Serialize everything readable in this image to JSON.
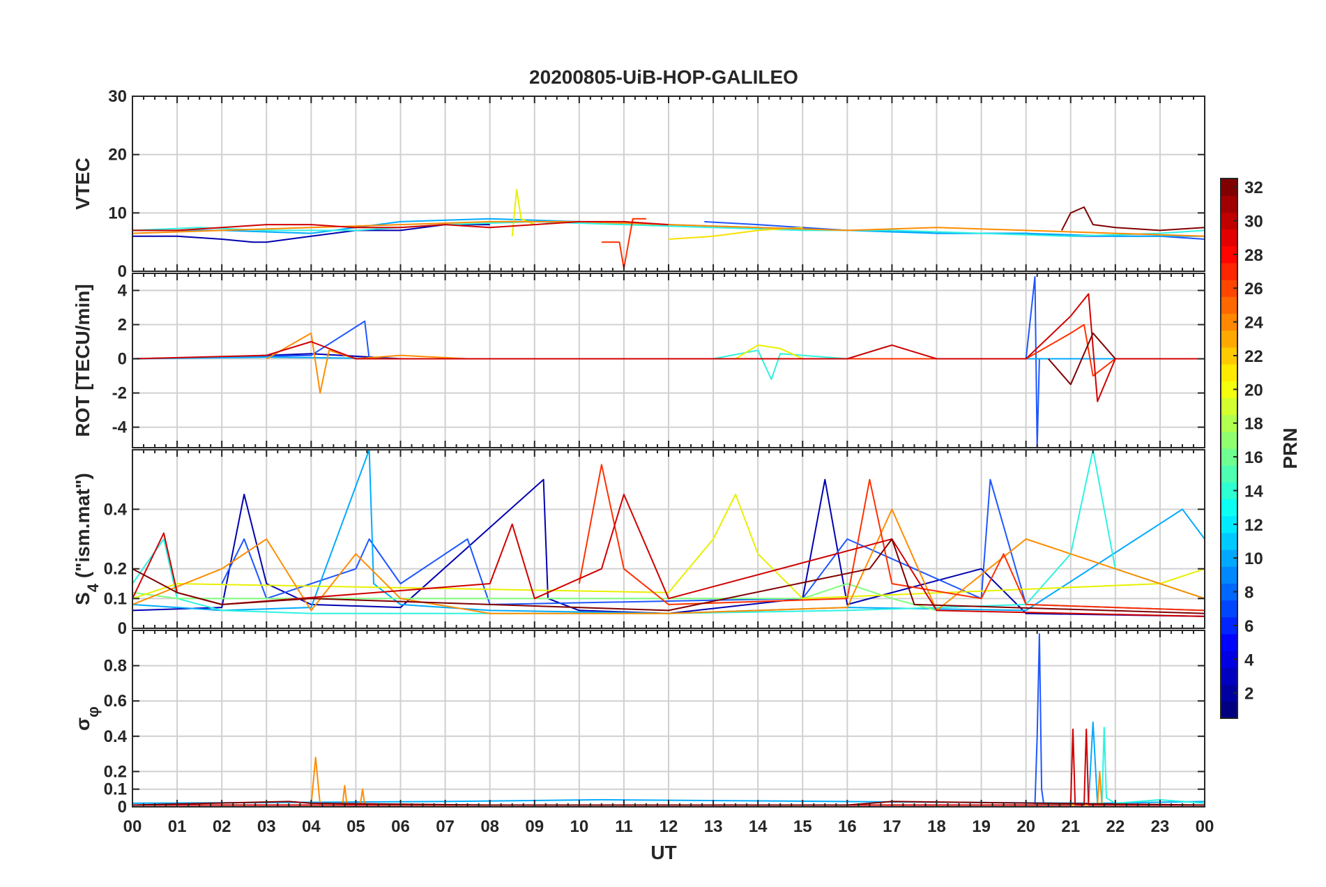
{
  "chart_data": [
    {
      "type": "line",
      "title": "20200805-UiB-HOP-GALILEO",
      "ylabel": "VTEC",
      "ylim": [
        0,
        30
      ],
      "yticks": [
        0,
        10,
        20,
        30
      ],
      "xlabel": "",
      "xlim": [
        0,
        24
      ],
      "grid": true,
      "series": [
        {
          "color": "#0000b0",
          "x": [
            0,
            1,
            2,
            2.7,
            3,
            4,
            5,
            6,
            7,
            8
          ],
          "y": [
            6,
            6,
            5.5,
            5,
            5,
            6,
            7,
            7,
            8,
            8
          ]
        },
        {
          "color": "#1e56ff",
          "x": [
            12.8,
            14,
            15,
            16,
            17,
            18,
            19,
            20,
            21,
            22,
            23,
            24
          ],
          "y": [
            8.5,
            8,
            7.5,
            7,
            7,
            6.5,
            6.5,
            6.5,
            6,
            6,
            6,
            5.5
          ]
        },
        {
          "color": "#00aaff",
          "x": [
            0,
            2,
            4,
            6,
            8,
            10,
            12,
            14,
            16,
            18,
            20,
            22,
            24
          ],
          "y": [
            7,
            7,
            6.5,
            8.5,
            9,
            8.5,
            8,
            7.5,
            7,
            6.5,
            6.5,
            6,
            6
          ]
        },
        {
          "color": "#2ef2e0",
          "x": [
            0,
            1.5,
            3,
            5,
            7,
            9,
            11,
            13,
            15,
            17,
            19,
            21,
            23,
            24
          ],
          "y": [
            7,
            7.5,
            7,
            7,
            8,
            8.5,
            8,
            7.5,
            7,
            7,
            6.5,
            6,
            6.5,
            7
          ]
        },
        {
          "color": "#e8f000",
          "x": [
            8.5,
            8.6,
            8.7,
            9
          ],
          "y": [
            6,
            14,
            9,
            8
          ]
        },
        {
          "color": "#f8e000",
          "x": [
            12,
            13,
            14,
            15
          ],
          "y": [
            5.5,
            6,
            7,
            7.5
          ]
        },
        {
          "color": "#ff8c00",
          "x": [
            0,
            2,
            4,
            6,
            8,
            10,
            12,
            14,
            16,
            18,
            20,
            22,
            24
          ],
          "y": [
            6.5,
            7,
            7.5,
            8,
            8.5,
            8.5,
            8,
            7.5,
            7,
            7.5,
            7,
            6.5,
            6
          ]
        },
        {
          "color": "#ff3000",
          "x": [
            10.5,
            10.9,
            11,
            11.2,
            11.5
          ],
          "y": [
            5,
            5,
            0.5,
            9,
            9
          ]
        },
        {
          "color": "#d00000",
          "x": [
            0,
            1,
            2,
            3,
            4,
            5,
            6,
            7,
            8,
            9,
            10,
            11,
            12
          ],
          "y": [
            7,
            7,
            7.5,
            8,
            8,
            7.5,
            7.5,
            8,
            7.5,
            8,
            8.5,
            8.5,
            8
          ]
        },
        {
          "color": "#800000",
          "x": [
            20.8,
            21,
            21.3,
            21.5,
            22,
            23,
            24
          ],
          "y": [
            7,
            10,
            11,
            8,
            7.5,
            7,
            7.5
          ]
        }
      ]
    },
    {
      "type": "line",
      "ylabel": "ROT [TECU/min]",
      "ylim": [
        -5.2,
        5
      ],
      "yticks": [
        -4,
        -2,
        0,
        2,
        4
      ],
      "xlabel": "",
      "xlim": [
        0,
        24
      ],
      "grid": true,
      "series": [
        {
          "color": "#0000b0",
          "x": [
            0,
            2,
            4,
            6,
            8,
            10,
            12,
            14,
            16,
            18,
            20,
            22,
            24
          ],
          "y": [
            0,
            0.1,
            0.3,
            0,
            0,
            0,
            0,
            0,
            0,
            0,
            0,
            0,
            0
          ]
        },
        {
          "color": "#1e56ff",
          "x": [
            0,
            4,
            5.2,
            5.3,
            8,
            20,
            20.2,
            20.25,
            20.3,
            20.4,
            24
          ],
          "y": [
            0,
            0.2,
            2.2,
            0,
            0,
            0,
            4.8,
            -5.2,
            0,
            0,
            0
          ]
        },
        {
          "color": "#00aaff",
          "x": [
            0,
            3,
            6,
            9,
            12,
            15,
            18,
            21,
            24
          ],
          "y": [
            0,
            0.1,
            0,
            0,
            0,
            0,
            0,
            0,
            0
          ]
        },
        {
          "color": "#2ef2e0",
          "x": [
            13,
            14,
            14.3,
            14.5,
            16,
            17
          ],
          "y": [
            0,
            0.5,
            -1.2,
            0.3,
            0,
            0.8
          ]
        },
        {
          "color": "#e8f000",
          "x": [
            13.5,
            14,
            14.5,
            15
          ],
          "y": [
            0,
            0.8,
            0.6,
            0
          ]
        },
        {
          "color": "#ff8c00",
          "x": [
            3,
            4,
            4.2,
            4.4,
            5,
            6,
            7.5
          ],
          "y": [
            0,
            1.5,
            -2,
            0.5,
            0,
            0.2,
            0
          ]
        },
        {
          "color": "#ff3000",
          "x": [
            10,
            16,
            20,
            21,
            21.3,
            21.5,
            22,
            24
          ],
          "y": [
            0,
            0,
            0,
            1.5,
            2,
            -1,
            0,
            0
          ]
        },
        {
          "color": "#d00000",
          "x": [
            0,
            3,
            4,
            5,
            8,
            12,
            16,
            17,
            18,
            20,
            21,
            21.4,
            21.6,
            22,
            24
          ],
          "y": [
            0,
            0.2,
            1,
            0,
            0,
            0,
            0,
            0.8,
            0,
            0,
            2.5,
            3.8,
            -2.5,
            0,
            0
          ]
        },
        {
          "color": "#800000",
          "x": [
            20.5,
            21,
            21.5,
            22
          ],
          "y": [
            0,
            -1.5,
            1.5,
            0
          ]
        }
      ]
    },
    {
      "type": "line",
      "ylabel": "S4 (\"ism.mat\")",
      "ylabel_main": "S",
      "ylabel_sub": "4",
      "ylabel_rest": " (\"ism.mat\")",
      "ylim": [
        0,
        0.6
      ],
      "yticks": [
        0,
        0.1,
        0.2,
        0.4
      ],
      "xlabel": "",
      "xlim": [
        0,
        24
      ],
      "grid": true,
      "series": [
        {
          "color": "#0000b0",
          "x": [
            0,
            2,
            2.5,
            3,
            4,
            6,
            9.2,
            9.3,
            10,
            12,
            15,
            15.5,
            16,
            19,
            20,
            24
          ],
          "y": [
            0.06,
            0.07,
            0.45,
            0.15,
            0.08,
            0.07,
            0.5,
            0.1,
            0.06,
            0.05,
            0.1,
            0.5,
            0.08,
            0.2,
            0.05,
            0.04
          ]
        },
        {
          "color": "#1e56ff",
          "x": [
            2,
            2.5,
            3,
            5,
            5.3,
            6,
            7.5,
            8,
            15,
            16,
            19,
            19.2,
            20,
            24
          ],
          "y": [
            0.15,
            0.3,
            0.1,
            0.2,
            0.3,
            0.15,
            0.3,
            0.08,
            0.1,
            0.3,
            0.1,
            0.5,
            0.08,
            0.06
          ]
        },
        {
          "color": "#00aaff",
          "x": [
            0,
            2,
            4,
            5.3,
            5.4,
            6,
            8,
            12,
            16,
            20,
            23.5,
            24
          ],
          "y": [
            0.08,
            0.06,
            0.07,
            0.6,
            0.15,
            0.08,
            0.06,
            0.05,
            0.07,
            0.06,
            0.4,
            0.3
          ]
        },
        {
          "color": "#2ef2e0",
          "x": [
            0,
            0.7,
            1,
            2,
            4,
            8,
            12,
            16,
            20,
            21,
            21.5,
            22,
            23,
            24
          ],
          "y": [
            0.15,
            0.3,
            0.1,
            0.06,
            0.05,
            0.05,
            0.05,
            0.06,
            0.08,
            0.25,
            0.6,
            0.2,
            0.15,
            0.1
          ]
        },
        {
          "color": "#7fff7f",
          "x": [
            0,
            1,
            15,
            16,
            17,
            18
          ],
          "y": [
            0.12,
            0.1,
            0.1,
            0.15,
            0.1,
            0.06
          ]
        },
        {
          "color": "#e8f000",
          "x": [
            0,
            1,
            12,
            13,
            13.5,
            14,
            15,
            23,
            24
          ],
          "y": [
            0.1,
            0.15,
            0.12,
            0.3,
            0.45,
            0.25,
            0.1,
            0.15,
            0.2
          ]
        },
        {
          "color": "#ff8c00",
          "x": [
            0,
            2,
            3,
            4,
            5,
            6,
            8,
            12,
            16,
            17,
            18,
            20,
            24
          ],
          "y": [
            0.08,
            0.2,
            0.3,
            0.06,
            0.25,
            0.1,
            0.05,
            0.05,
            0.07,
            0.4,
            0.06,
            0.3,
            0.1
          ]
        },
        {
          "color": "#ff3000",
          "x": [
            10,
            10.5,
            11,
            12,
            16,
            16.5,
            17,
            19,
            19.5,
            20,
            24
          ],
          "y": [
            0.15,
            0.55,
            0.2,
            0.08,
            0.1,
            0.5,
            0.15,
            0.1,
            0.25,
            0.08,
            0.06
          ]
        },
        {
          "color": "#d00000",
          "x": [
            0,
            0.7,
            1,
            2,
            8,
            8.5,
            9,
            10.5,
            11,
            12,
            17,
            18,
            24
          ],
          "y": [
            0.1,
            0.32,
            0.12,
            0.08,
            0.15,
            0.35,
            0.1,
            0.2,
            0.45,
            0.1,
            0.3,
            0.06,
            0.04
          ]
        },
        {
          "color": "#800000",
          "x": [
            0,
            1,
            2,
            4,
            8,
            12,
            16.5,
            17,
            17.5,
            24
          ],
          "y": [
            0.2,
            0.12,
            0.08,
            0.1,
            0.08,
            0.06,
            0.2,
            0.3,
            0.08,
            0.05
          ]
        }
      ]
    },
    {
      "type": "line",
      "ylabel": "σφ",
      "ylabel_main": "σ",
      "ylabel_sub": "φ",
      "ylim": [
        0,
        1
      ],
      "yticks": [
        0,
        0.1,
        0.2,
        0.4,
        0.6,
        0.8
      ],
      "xlabel": "UT",
      "xlim": [
        0,
        24
      ],
      "grid": true,
      "series": [
        {
          "color": "#1e56ff",
          "x": [
            0,
            20.2,
            20.25,
            20.3,
            20.35,
            20.4,
            24
          ],
          "y": [
            0.01,
            0.01,
            0.4,
            0.98,
            0.1,
            0.01,
            0.01
          ]
        },
        {
          "color": "#00aaff",
          "x": [
            0,
            7,
            10.5,
            21.4,
            21.5,
            21.6,
            24
          ],
          "y": [
            0.02,
            0.03,
            0.04,
            0.02,
            0.48,
            0.02,
            0.03
          ]
        },
        {
          "color": "#2ef2e0",
          "x": [
            0,
            20,
            21.7,
            21.75,
            21.8,
            22,
            23,
            24
          ],
          "y": [
            0.01,
            0.01,
            0.02,
            0.45,
            0.05,
            0.02,
            0.04,
            0.02
          ]
        },
        {
          "color": "#ff8c00",
          "x": [
            0,
            4,
            4.1,
            4.2,
            4.7,
            4.75,
            4.8,
            5.1,
            5.15,
            5.2,
            21.6,
            21.65,
            21.7,
            24
          ],
          "y": [
            0.01,
            0.01,
            0.28,
            0.01,
            0.01,
            0.12,
            0.01,
            0.01,
            0.1,
            0.01,
            0.01,
            0.2,
            0.01,
            0.01
          ]
        },
        {
          "color": "#d00000",
          "x": [
            0,
            21,
            21.05,
            21.1,
            21.3,
            21.35,
            21.4,
            24
          ],
          "y": [
            0.01,
            0.01,
            0.44,
            0.01,
            0.01,
            0.44,
            0.01,
            0.01
          ]
        },
        {
          "color": "#800000",
          "x": [
            0,
            3.5,
            4,
            8,
            16,
            17,
            24
          ],
          "y": [
            0.01,
            0.03,
            0.02,
            0.01,
            0.01,
            0.03,
            0.01
          ]
        }
      ]
    }
  ],
  "x_tick_labels": [
    "00",
    "01",
    "02",
    "03",
    "04",
    "05",
    "06",
    "07",
    "08",
    "09",
    "10",
    "11",
    "12",
    "13",
    "14",
    "15",
    "16",
    "17",
    "18",
    "19",
    "20",
    "21",
    "22",
    "23",
    "00"
  ],
  "colorbar": {
    "label": "PRN",
    "range": [
      1,
      32
    ],
    "ticks": [
      2,
      4,
      6,
      8,
      10,
      12,
      14,
      16,
      18,
      20,
      22,
      24,
      26,
      28,
      30,
      32
    ],
    "colormap": "jet"
  }
}
